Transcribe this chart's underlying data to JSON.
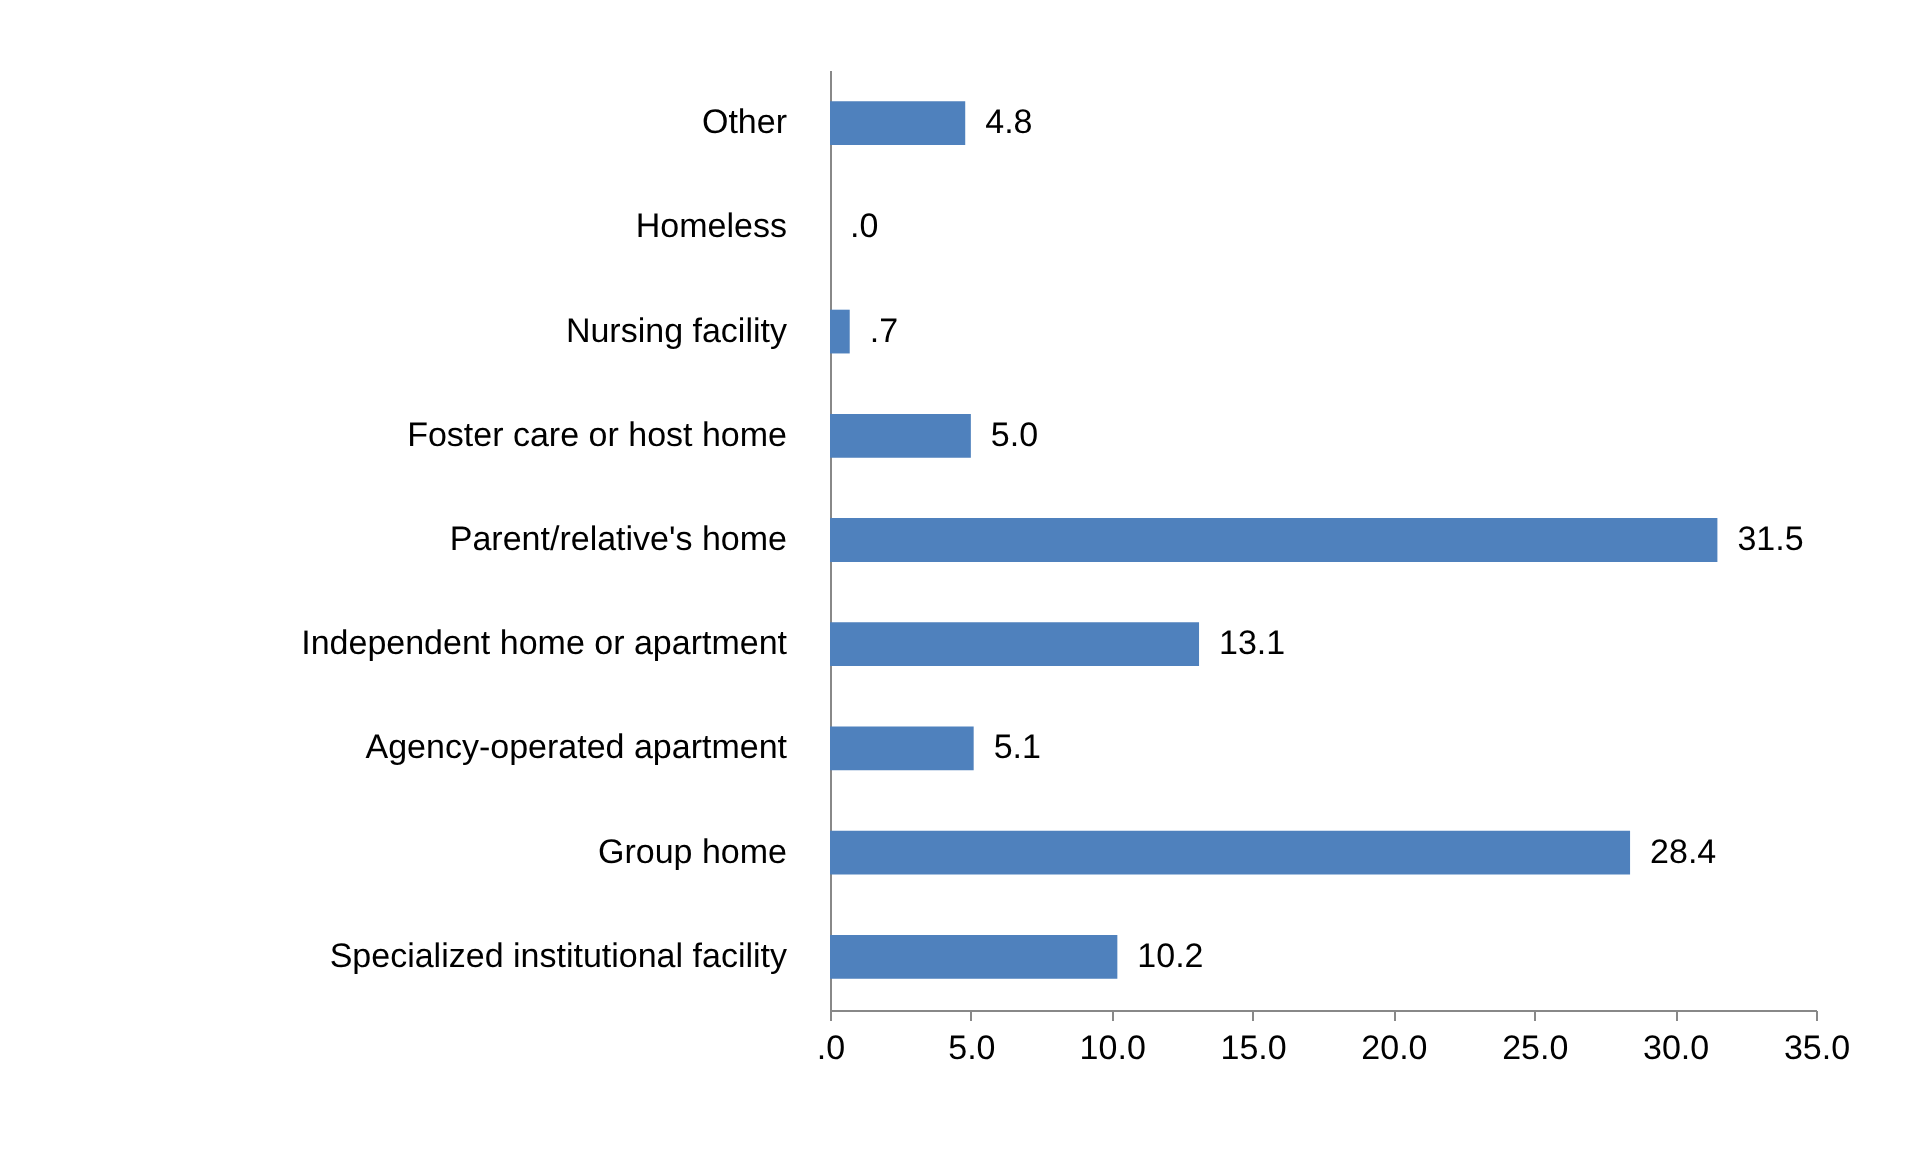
{
  "chart_data": {
    "type": "bar",
    "orientation": "horizontal",
    "categories": [
      "Other",
      "Homeless",
      "Nursing facility",
      "Foster care or host home",
      "Parent/relative's home",
      "Independent home or apartment",
      "Agency-operated apartment",
      "Group home",
      "Specialized institutional facility"
    ],
    "values": [
      4.8,
      0.0,
      0.7,
      5.0,
      31.5,
      13.1,
      5.1,
      28.4,
      10.2
    ],
    "value_labels": [
      "4.8",
      ".0",
      ".7",
      "5.0",
      "31.5",
      "13.1",
      "5.1",
      "28.4",
      "10.2"
    ],
    "color": "#4f81bd",
    "xlim": [
      0,
      35
    ],
    "xticks": [
      {
        "value": 0,
        "label": ".0"
      },
      {
        "value": 5,
        "label": "5.0"
      },
      {
        "value": 10,
        "label": "10.0"
      },
      {
        "value": 15,
        "label": "15.0"
      },
      {
        "value": 20,
        "label": "20.0"
      },
      {
        "value": 25,
        "label": "25.0"
      },
      {
        "value": 30,
        "label": "30.0"
      },
      {
        "value": 35,
        "label": "35.0"
      }
    ],
    "grid": false
  }
}
